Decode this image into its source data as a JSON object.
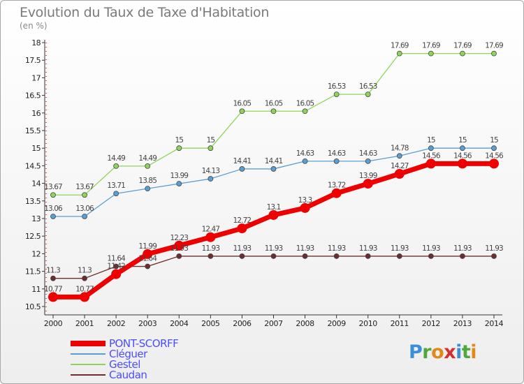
{
  "header": {
    "title": "Evolution du Taux de Taxe d'Habitation",
    "unit_label": "(en %)"
  },
  "logo": {
    "letters": [
      "P",
      "r",
      "o",
      "x",
      "i",
      "t",
      "i"
    ],
    "colors": [
      "#3b8fd6",
      "#4fa83d",
      "#e08a1e",
      "#d62e2e",
      "#3b8fd6",
      "#4fa83d",
      "#e08a1e"
    ]
  },
  "chart_data": {
    "type": "line",
    "x": [
      "2000",
      "2001",
      "2002",
      "2003",
      "2004",
      "2005",
      "2006",
      "2007",
      "2008",
      "2009",
      "2010",
      "2011",
      "2012",
      "2013",
      "2014"
    ],
    "ylim": [
      10.5,
      18
    ],
    "yticks": [
      "10.5",
      "11",
      "11.5",
      "12",
      "12.5",
      "13",
      "13.5",
      "14",
      "14.5",
      "15",
      "15.5",
      "16",
      "16.5",
      "17",
      "17.5",
      "18"
    ],
    "grid": false,
    "legend_position": "bottom-left",
    "series": [
      {
        "name": "Caudan",
        "color": "#6e2c2c",
        "highlight": false,
        "values": [
          11.3,
          11.3,
          11.64,
          11.64,
          11.93,
          11.93,
          11.93,
          11.93,
          11.93,
          11.93,
          11.93,
          11.93,
          11.93,
          11.93,
          11.93
        ],
        "labels": [
          "11.3",
          "11.3",
          "11.64",
          "11.64",
          "11.93",
          "11.93",
          "11.93",
          "11.93",
          "11.93",
          "11.93",
          "11.93",
          "11.93",
          "11.93",
          "11.93",
          "11.93"
        ]
      },
      {
        "name": "Gestel",
        "color": "#8fd45a",
        "highlight": false,
        "values": [
          13.67,
          13.67,
          14.49,
          14.49,
          15,
          15,
          16.05,
          16.05,
          16.05,
          16.53,
          16.53,
          17.69,
          17.69,
          17.69,
          17.69
        ],
        "labels": [
          "13.67",
          "13.67",
          "14.49",
          "14.49",
          "15",
          "15",
          "16.05",
          "16.05",
          "16.05",
          "16.53",
          "16.53",
          "17.69",
          "17.69",
          "17.69",
          "17.69"
        ]
      },
      {
        "name": "Cléguer",
        "color": "#5a9fd4",
        "highlight": false,
        "values": [
          13.06,
          13.06,
          13.71,
          13.85,
          13.99,
          14.13,
          14.41,
          14.41,
          14.63,
          14.63,
          14.63,
          14.78,
          15,
          15,
          15
        ],
        "labels": [
          "13.06",
          "13.06",
          "13.71",
          "13.85",
          "13.99",
          "14.13",
          "14.41",
          "14.41",
          "14.63",
          "14.63",
          "14.63",
          "14.78",
          "15",
          "15",
          "15"
        ]
      },
      {
        "name": "PONT-SCORFF",
        "color": "#ee0000",
        "highlight": true,
        "values": [
          10.77,
          10.77,
          11.42,
          11.99,
          12.23,
          12.47,
          12.72,
          13.1,
          13.3,
          13.72,
          13.99,
          14.27,
          14.56,
          14.56,
          14.56
        ],
        "labels": [
          "10.77",
          "10.77",
          "11.42",
          "11.99",
          "12.23",
          "12.47",
          "12.72",
          "13.1",
          "13.3",
          "13.72",
          "13.99",
          "14.27",
          "14.56",
          "14.56",
          "14.56"
        ]
      }
    ],
    "legend_order": [
      "PONT-SCORFF",
      "Cléguer",
      "Gestel",
      "Caudan"
    ]
  }
}
